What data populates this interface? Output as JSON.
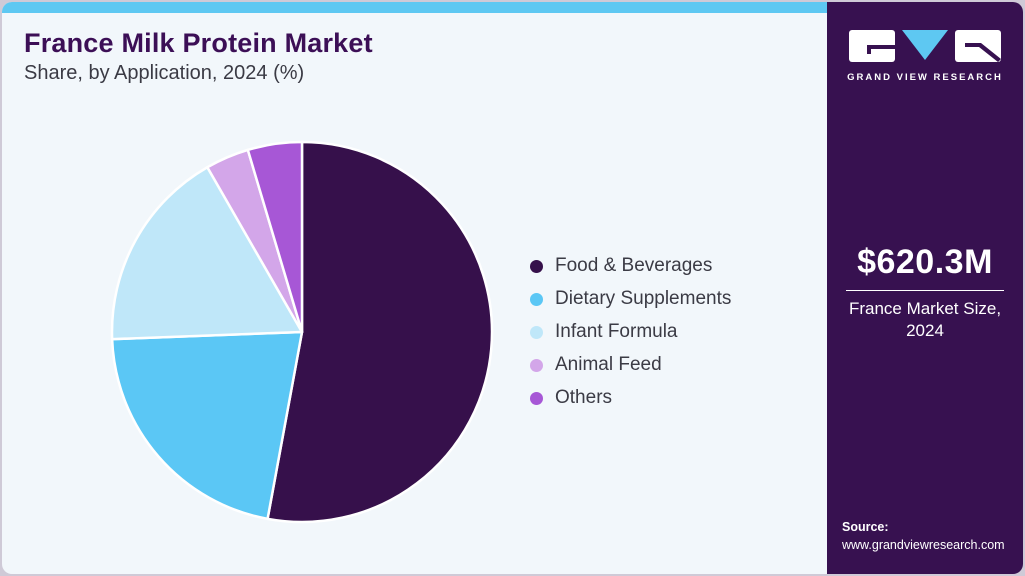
{
  "header": {
    "title": "France Milk Protein Market",
    "subtitle": "Share, by Application, 2024 (%)"
  },
  "chart_data": {
    "type": "pie",
    "title": "France Milk Protein Market Share, by Application, 2024 (%)",
    "categories": [
      "Food & Beverages",
      "Dietary Supplements",
      "Infant Formula",
      "Animal Feed",
      "Others"
    ],
    "values": [
      52.9,
      21.5,
      17.3,
      3.7,
      4.6
    ],
    "unit": "%",
    "colors": [
      "#36104b",
      "#5bc7f5",
      "#bfe7f9",
      "#d3a6e9",
      "#a757d6"
    ],
    "start_angle_deg": 0,
    "direction": "clockwise",
    "legend_position": "right",
    "slice_border_color": "#ffffff"
  },
  "sidebar": {
    "logo_text": "GRAND VIEW RESEARCH",
    "market_size_value": "$620.3M",
    "market_size_label_line1": "France Market Size,",
    "market_size_label_line2": "2024",
    "source_label": "Source:",
    "source_url": "www.grandviewresearch.com",
    "background_color": "#371150",
    "accent_color": "#5ec8f2"
  },
  "colors": {
    "top_bar": "#5ec8f2",
    "main_background": "#f2f7fb",
    "title_text": "#3c0f56",
    "body_text": "#3b3b45"
  }
}
